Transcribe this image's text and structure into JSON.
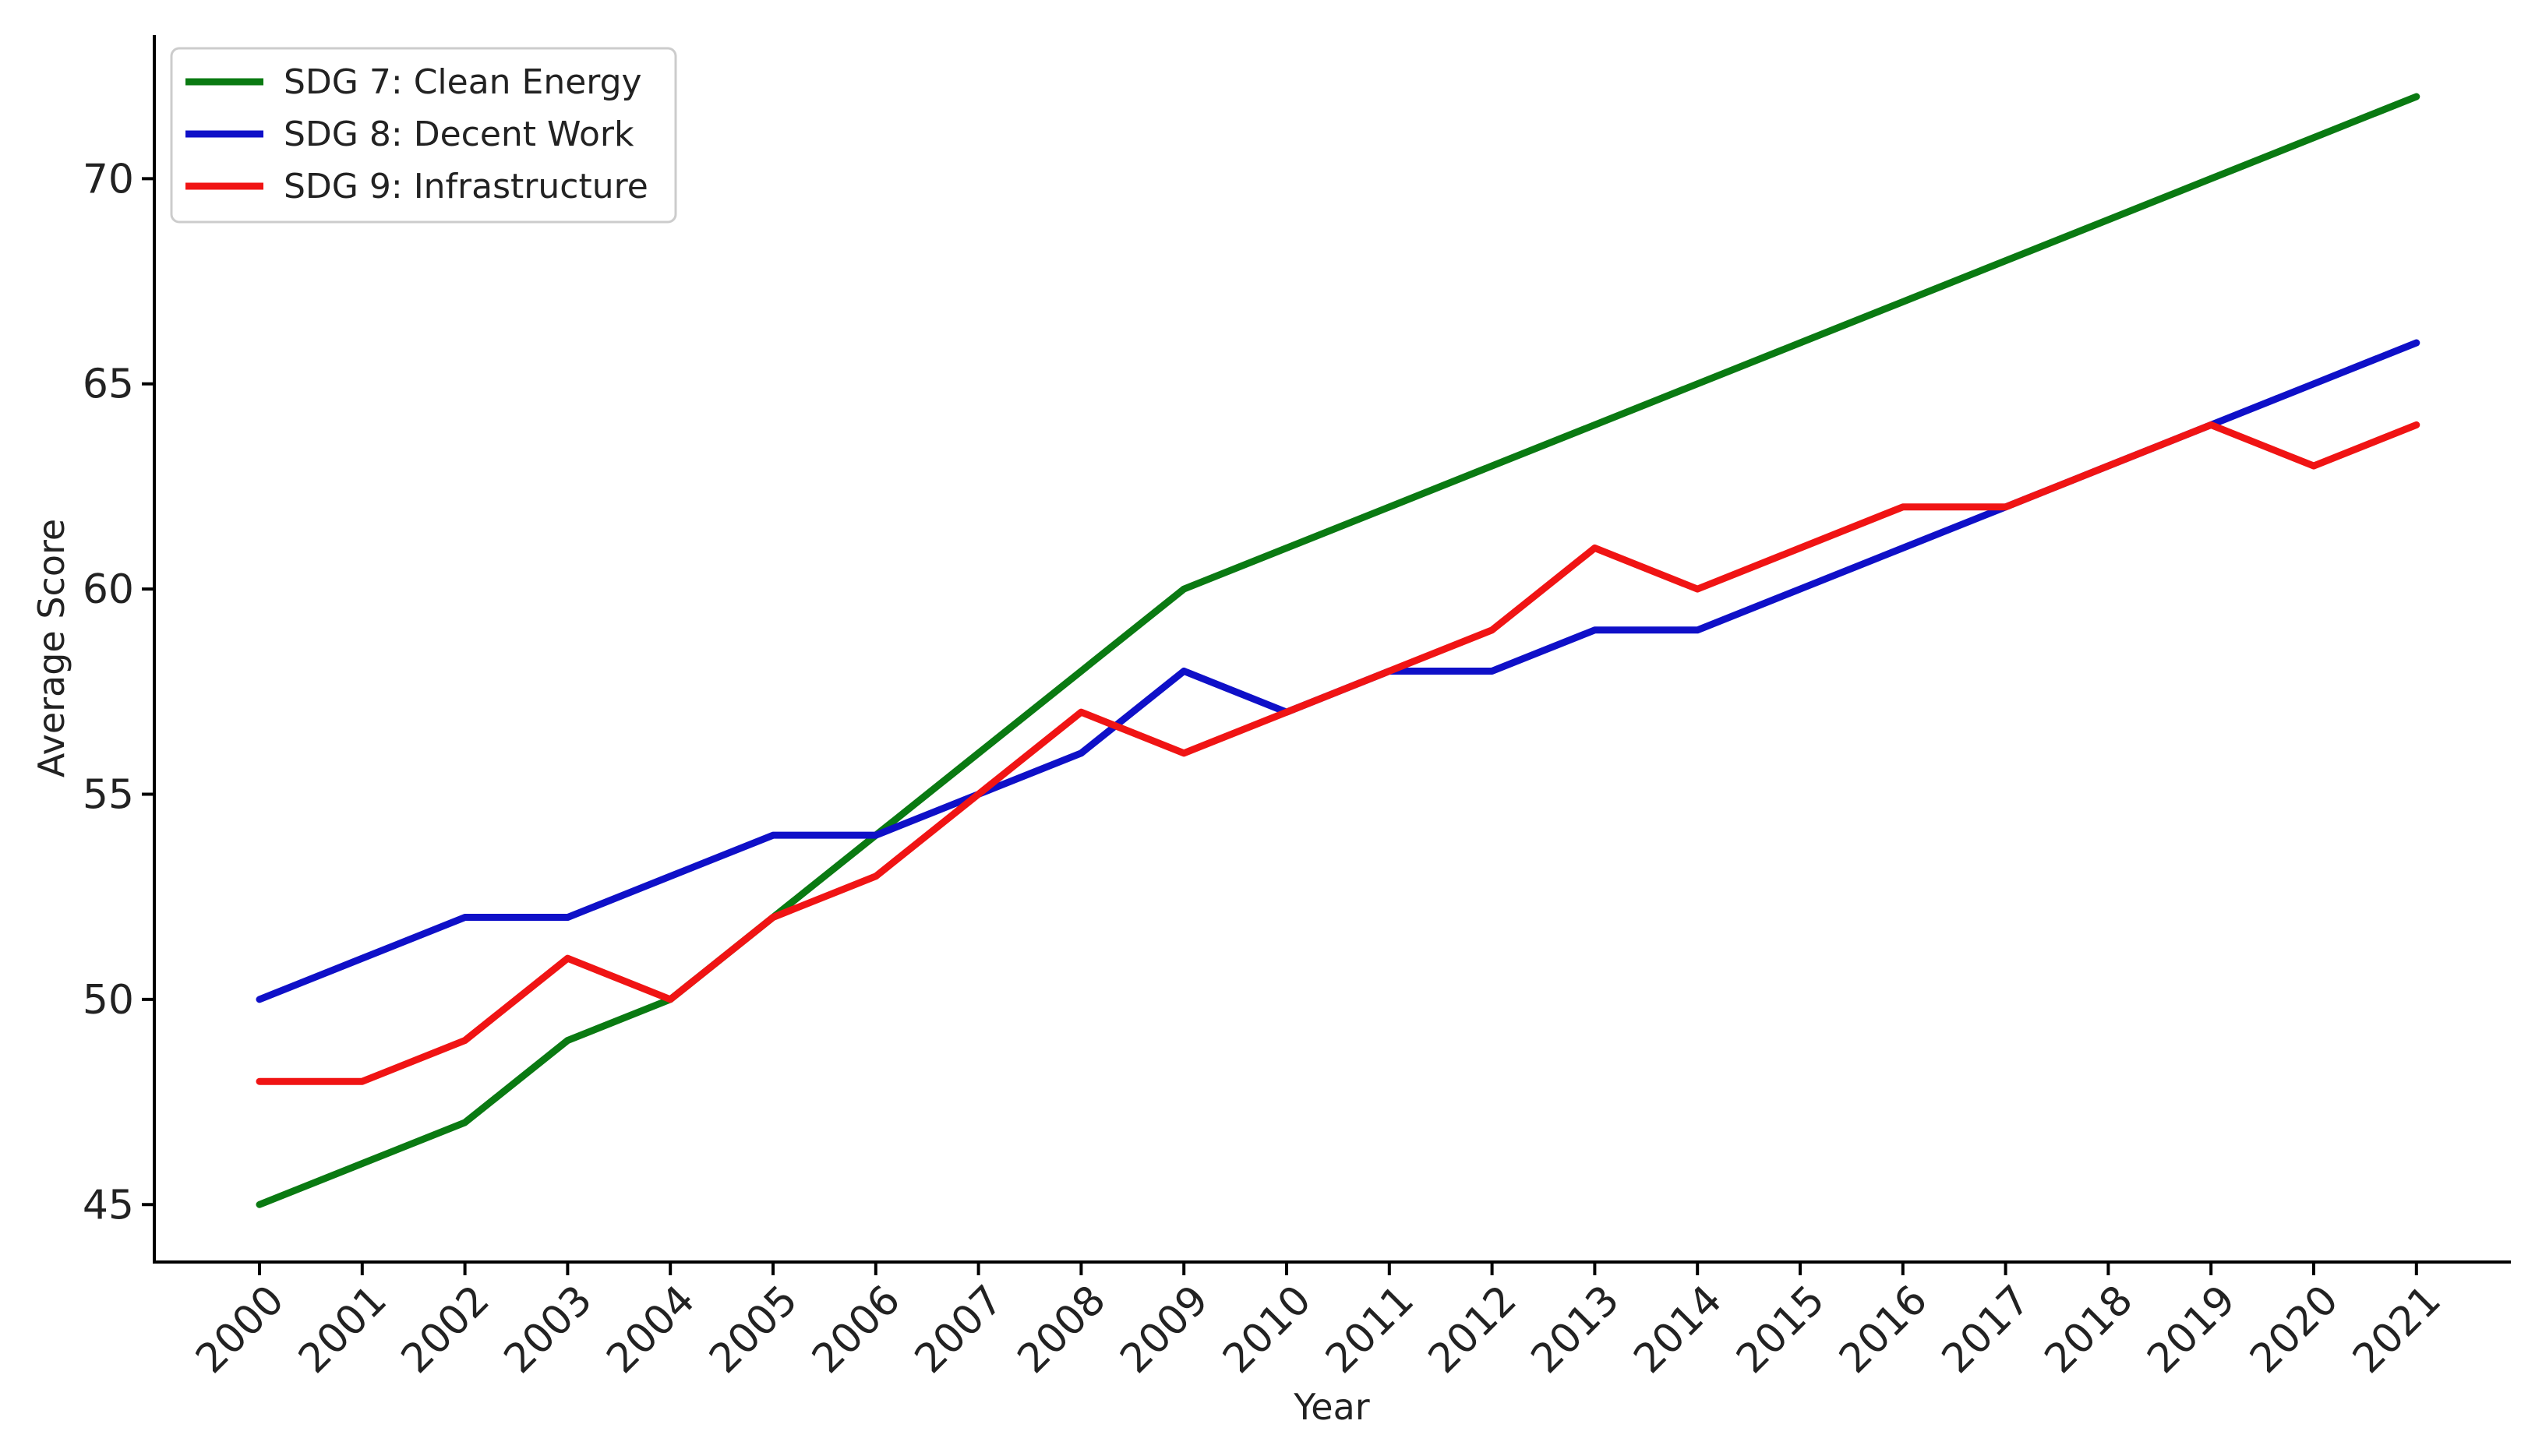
{
  "chart_data": {
    "type": "line",
    "title": "",
    "xlabel": "Year",
    "ylabel": "Average Score",
    "categories": [
      "2000",
      "2001",
      "2002",
      "2003",
      "2004",
      "2005",
      "2006",
      "2007",
      "2008",
      "2009",
      "2010",
      "2011",
      "2012",
      "2013",
      "2014",
      "2015",
      "2016",
      "2017",
      "2018",
      "2019",
      "2020",
      "2021"
    ],
    "yticks": [
      45,
      50,
      55,
      60,
      65,
      70
    ],
    "ylim": [
      43.6,
      73.5
    ],
    "grid": false,
    "legend_position": "top-left",
    "series": [
      {
        "name": "SDG 7: Clean Energy",
        "color": "#0a7a12",
        "values": [
          45,
          46,
          47,
          49,
          50,
          52,
          54,
          56,
          58,
          60,
          61,
          62,
          63,
          64,
          65,
          66,
          67,
          68,
          69,
          70,
          71,
          72
        ]
      },
      {
        "name": "SDG 8: Decent Work",
        "color": "#0f10c8",
        "values": [
          50,
          51,
          52,
          52,
          53,
          54,
          54,
          55,
          56,
          58,
          57,
          58,
          58,
          59,
          59,
          60,
          61,
          62,
          63,
          64,
          65,
          66
        ]
      },
      {
        "name": "SDG 9: Infrastructure",
        "color": "#f01414",
        "values": [
          48,
          48,
          49,
          51,
          50,
          52,
          53,
          55,
          57,
          56,
          57,
          58,
          59,
          61,
          60,
          61,
          62,
          62,
          63,
          64,
          63,
          64
        ]
      }
    ]
  }
}
